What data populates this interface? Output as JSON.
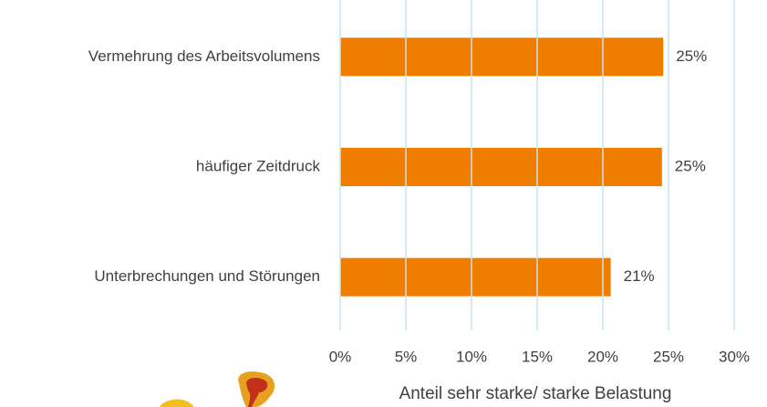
{
  "chart_data": {
    "type": "bar",
    "orientation": "horizontal",
    "categories": [
      "Vermehrung des Arbeitsvolumens",
      "häufiger Zeitdruck",
      "Unterbrechungen und Störungen"
    ],
    "values": [
      24.6,
      24.5,
      20.6
    ],
    "value_labels": [
      "25%",
      "25%",
      "21%"
    ],
    "color": "#ef7d00",
    "xlabel": "Anteil sehr starke/ starke Belastung",
    "xlim": [
      0,
      30
    ],
    "xticks": [
      {
        "value": 0,
        "label": "0%"
      },
      {
        "value": 5,
        "label": "5%"
      },
      {
        "value": 10,
        "label": "10%"
      },
      {
        "value": 15,
        "label": "15%"
      },
      {
        "value": 20,
        "label": "20%"
      },
      {
        "value": 25,
        "label": "25%"
      },
      {
        "value": 30,
        "label": "30%"
      }
    ],
    "grid": true
  }
}
